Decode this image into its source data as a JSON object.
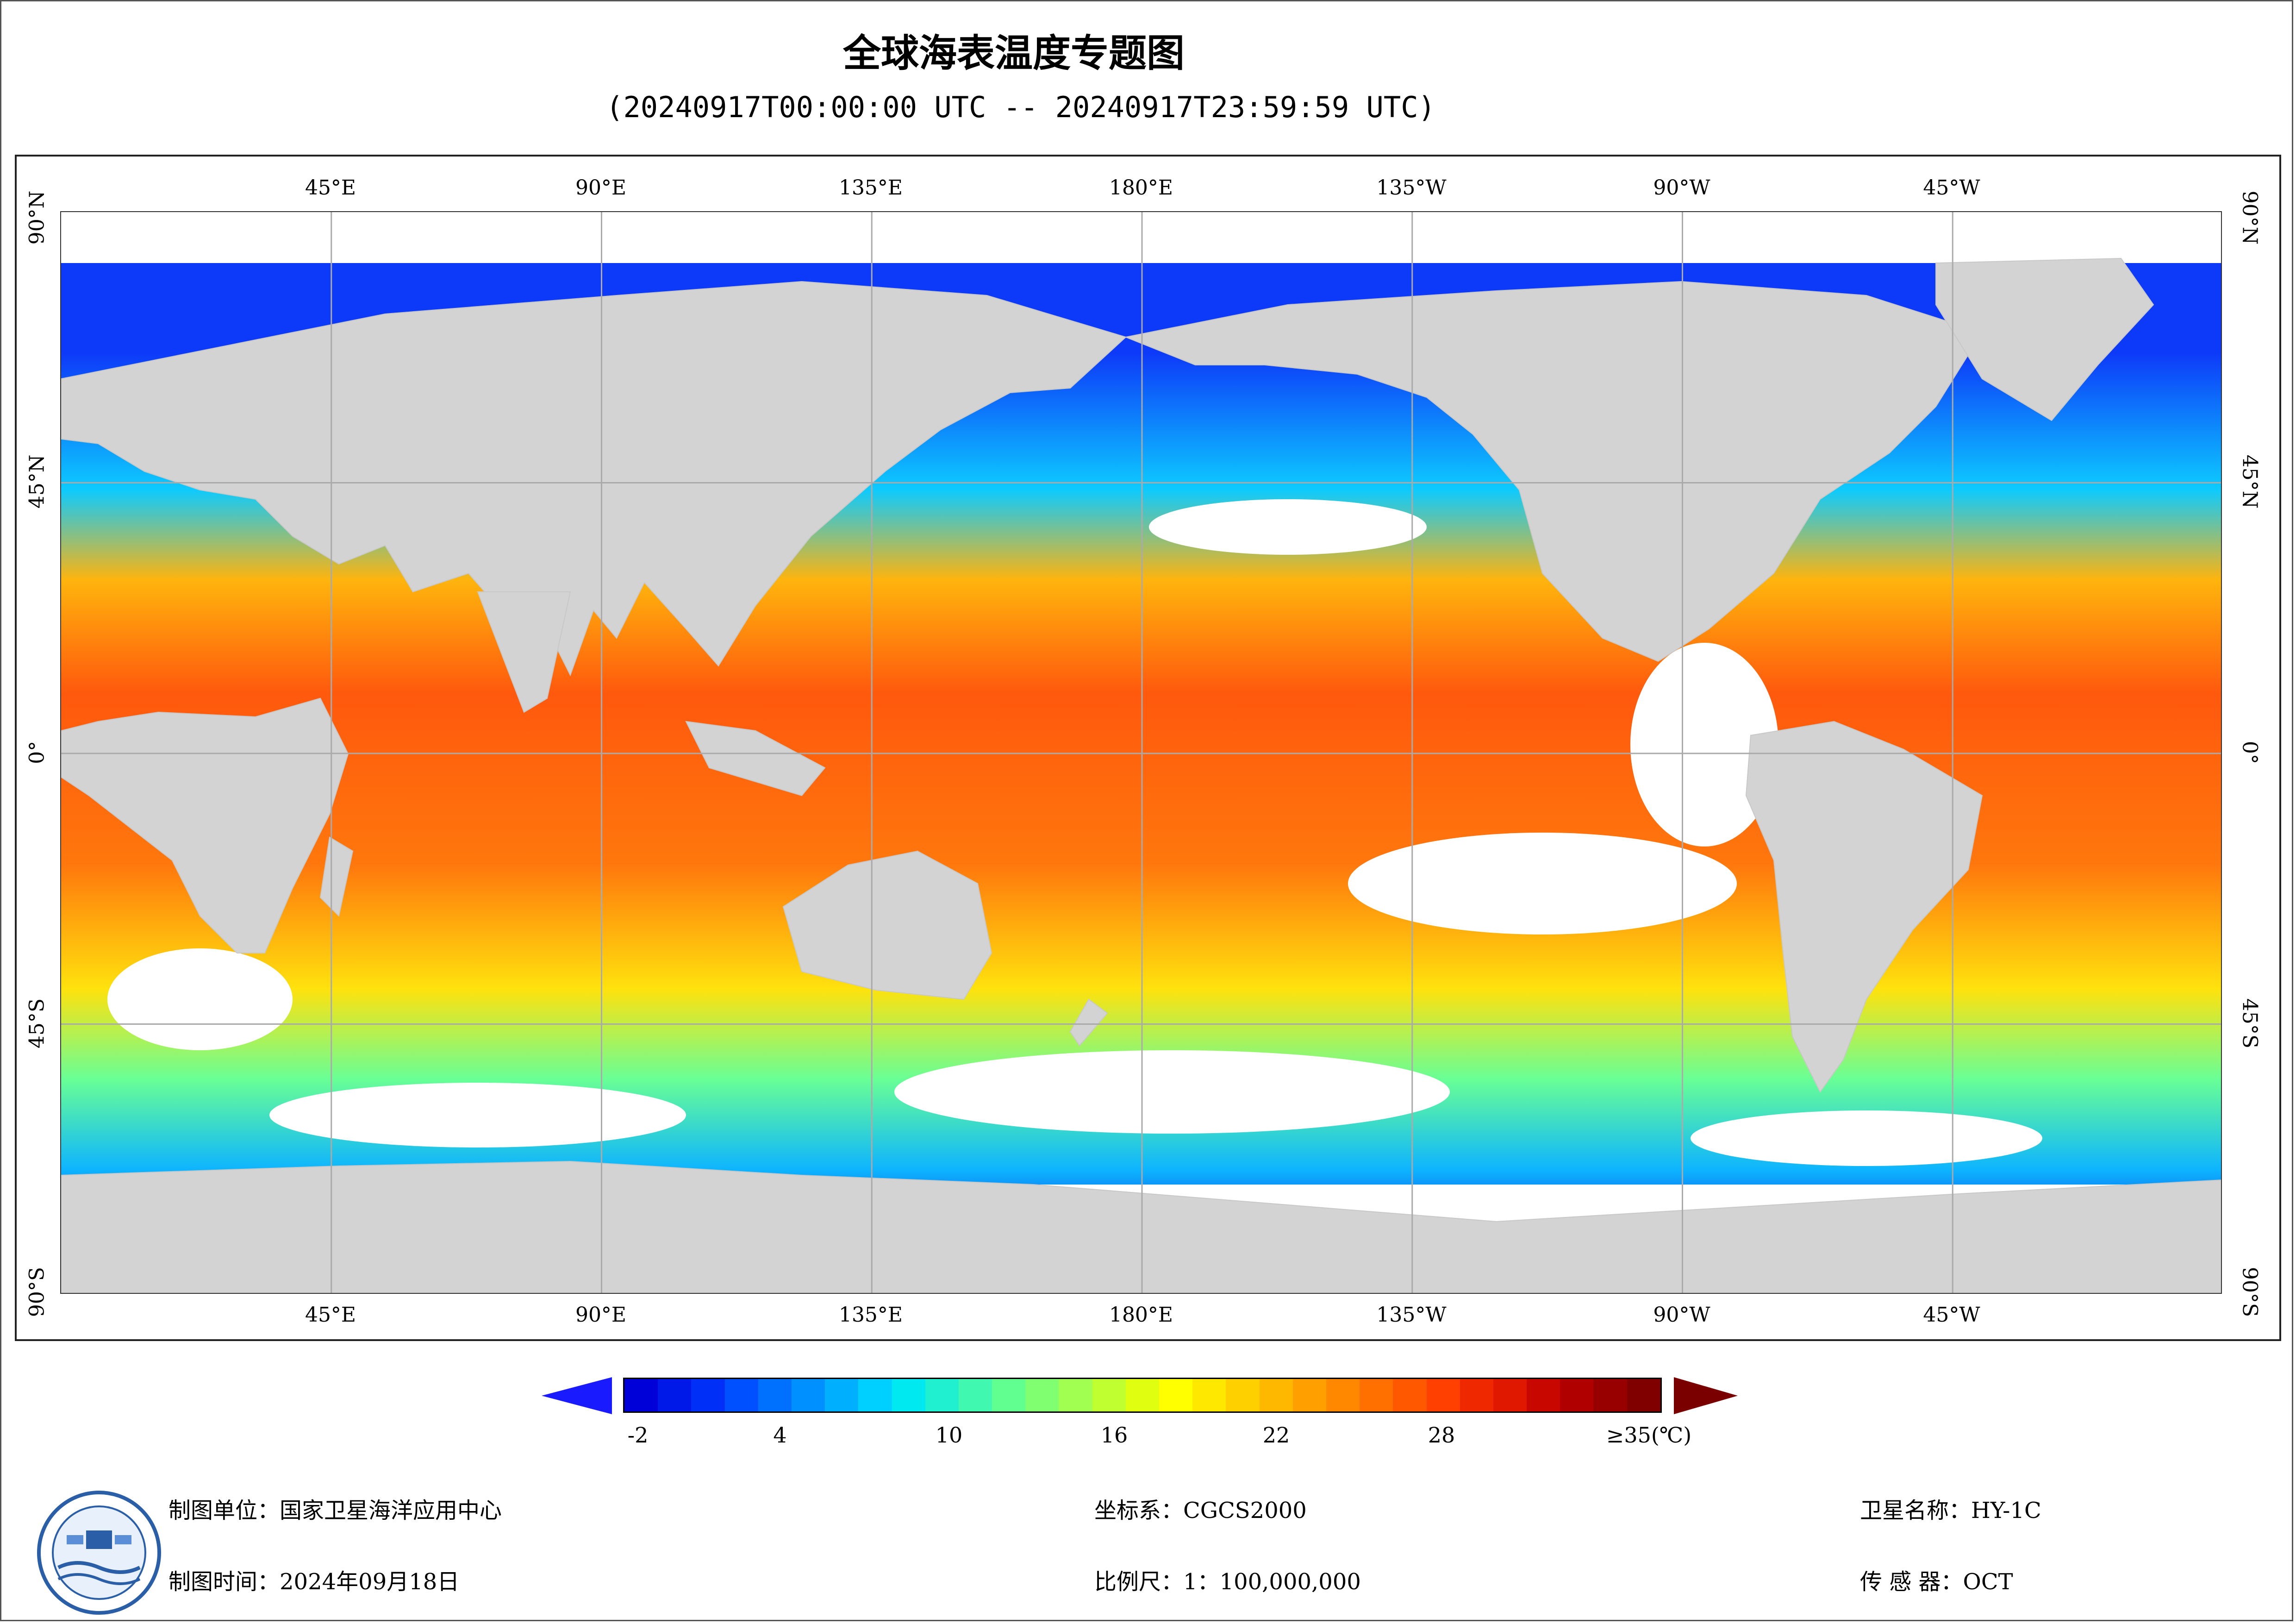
{
  "header": {
    "title": "全球海表温度专题图",
    "time_range": "(20240917T00:00:00 UTC -- 20240917T23:59:59 UTC)"
  },
  "map": {
    "lon_labels": [
      "45°E",
      "90°E",
      "135°E",
      "180°E",
      "135°W",
      "90°W",
      "45°W"
    ],
    "lat_labels": [
      "90°N",
      "45°N",
      "0°",
      "45°S",
      "90°S"
    ],
    "land_color": "#d3d3d3",
    "ocean_nodata_color": "#ffffff"
  },
  "legend": {
    "tick_labels": [
      "-2",
      "4",
      "10",
      "16",
      "22",
      "28",
      "≥35(℃)"
    ],
    "min_value": -2,
    "max_value": 35,
    "colors": [
      "#0000d8",
      "#0018e8",
      "#0030f8",
      "#0050ff",
      "#0070ff",
      "#0090ff",
      "#00b0ff",
      "#00d0ff",
      "#00e8f0",
      "#20f0d0",
      "#40f8b0",
      "#60ff90",
      "#80ff70",
      "#a0ff50",
      "#c0ff30",
      "#e0ff10",
      "#ffff00",
      "#ffe800",
      "#ffd000",
      "#ffb800",
      "#ffa000",
      "#ff8800",
      "#ff7000",
      "#ff5800",
      "#ff4000",
      "#f02800",
      "#e01800",
      "#c80800",
      "#b00000",
      "#980000",
      "#800000"
    ]
  },
  "footer": {
    "org": "制图单位：国家卫星海洋应用中心",
    "date": "制图时间：2024年09月18日",
    "crs": "坐标系：CGCS2000",
    "scale": "比例尺：1：100,000,000",
    "satellite": "卫星名称：HY-1C",
    "sensor": "传  感  器：OCT"
  }
}
